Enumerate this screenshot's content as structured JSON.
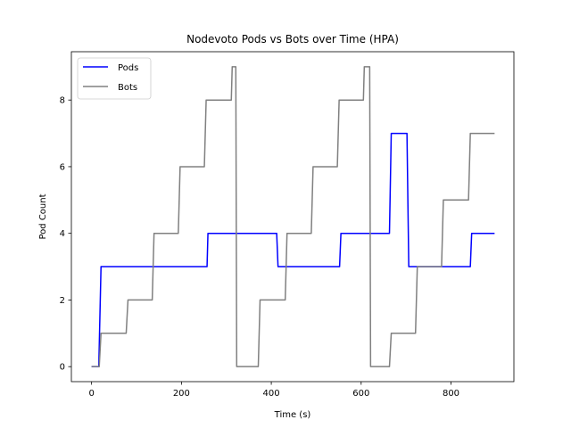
{
  "chart_data": {
    "type": "line",
    "title": "Nodevoto Pods vs Bots over Time (HPA)",
    "xlabel": "Time (s)",
    "ylabel": "Pod Count",
    "xlim": [
      -45,
      940
    ],
    "ylim": [
      -0.45,
      9.45
    ],
    "xticks": [
      0,
      200,
      400,
      600,
      800
    ],
    "yticks": [
      0,
      2,
      4,
      6,
      8
    ],
    "grid": false,
    "legend": "top-left",
    "series": [
      {
        "name": "Pods",
        "color": "#0000ff",
        "x": [
          0,
          16,
          21,
          257,
          259,
          412,
          415,
          552,
          555,
          663,
          667,
          702,
          706,
          843,
          846,
          897
        ],
        "y": [
          0,
          0,
          3,
          3,
          4,
          4,
          3,
          3,
          4,
          4,
          7,
          7,
          3,
          3,
          4,
          4
        ]
      },
      {
        "name": "Bots",
        "color": "#808080",
        "x": [
          0,
          17,
          21,
          77,
          81,
          135,
          139,
          193,
          197,
          251,
          255,
          311,
          313,
          321,
          323,
          371,
          375,
          431,
          435,
          489,
          493,
          547,
          551,
          605,
          607,
          619,
          621,
          663,
          667,
          721,
          725,
          779,
          783,
          839,
          843,
          897
        ],
        "y": [
          0,
          0,
          1,
          1,
          2,
          2,
          4,
          4,
          6,
          6,
          8,
          8,
          9,
          9,
          0,
          0,
          2,
          2,
          4,
          4,
          6,
          6,
          8,
          8,
          9,
          9,
          0,
          0,
          1,
          1,
          3,
          3,
          5,
          5,
          7,
          7
        ]
      }
    ]
  }
}
